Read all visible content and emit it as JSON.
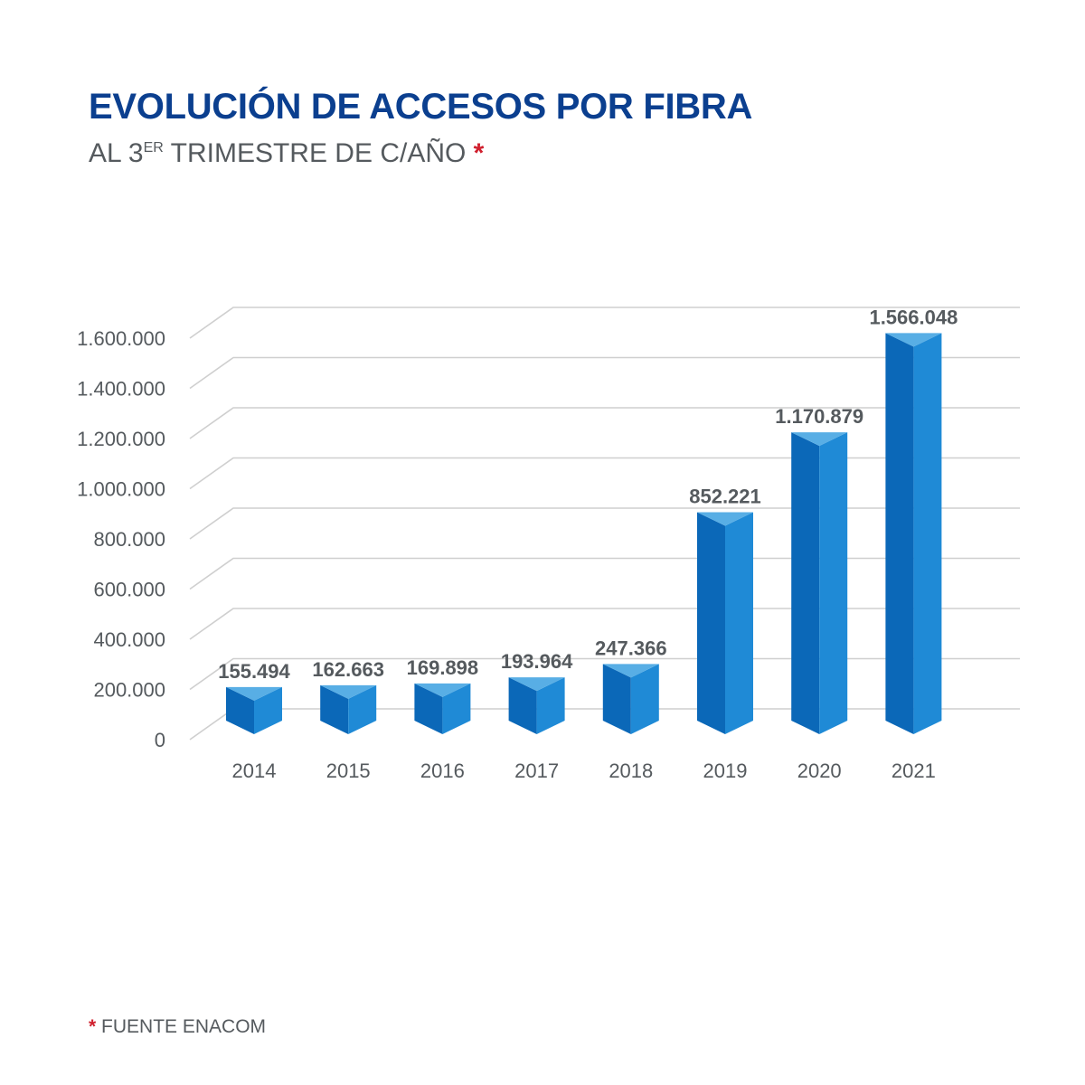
{
  "header": {
    "title": "EVOLUCIÓN DE ACCESOS POR FIBRA",
    "subtitle_prefix": "AL 3",
    "subtitle_sup": "ER",
    "subtitle_suffix": " TRIMESTRE DE C/AÑO ",
    "asterisk": "*"
  },
  "footnote": {
    "asterisk": "*",
    "text": " FUENTE ENACOM"
  },
  "colors": {
    "title": "#0b3f8f",
    "text": "#555a5e",
    "accent_red": "#d0202e",
    "bar_front_left": "#0b68b8",
    "bar_front_right": "#1f8ad6",
    "bar_top": "#58aee5",
    "grid": "#cfcfcf"
  },
  "chart_data": {
    "type": "bar",
    "categories": [
      "2014",
      "2015",
      "2016",
      "2017",
      "2018",
      "2019",
      "2020",
      "2021"
    ],
    "values": [
      155494,
      162663,
      169898,
      193964,
      247366,
      852221,
      1170879,
      1566048
    ],
    "value_labels": [
      "155.494",
      "162.663",
      "169.898",
      "193.964",
      "247.366",
      "852.221",
      "1.170.879",
      "1.566.048"
    ],
    "yticks": [
      0,
      200000,
      400000,
      600000,
      800000,
      1000000,
      1200000,
      1400000,
      1600000
    ],
    "ytick_labels": [
      "0",
      "200.000",
      "400.000",
      "600.000",
      "800.000",
      "1.000.000",
      "1.200.000",
      "1.400.000",
      "1.600.000"
    ],
    "ylim": [
      0,
      1600000
    ],
    "grid": true,
    "style": "3d-prism"
  }
}
